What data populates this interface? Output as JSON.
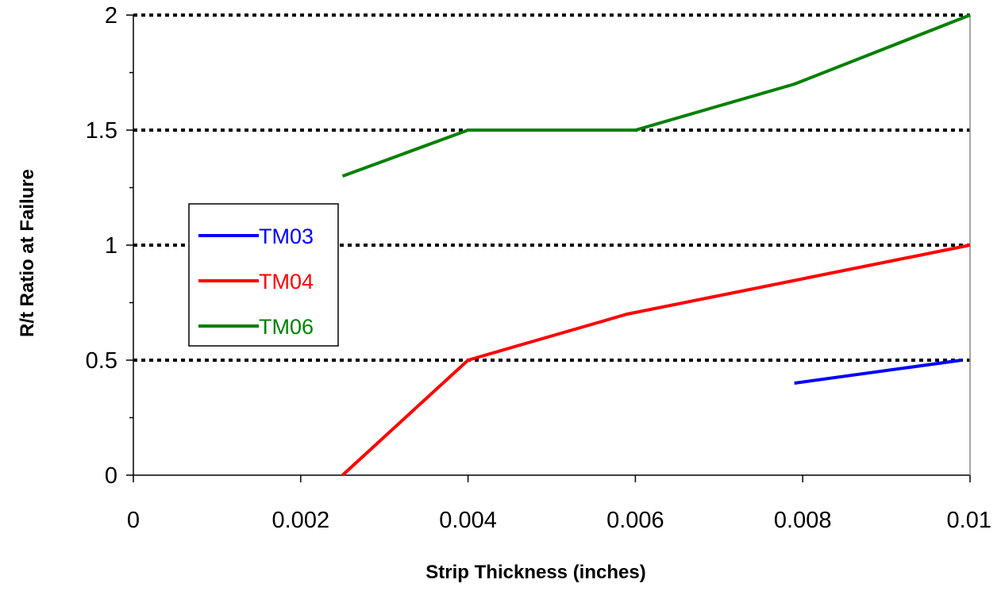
{
  "chart_data": {
    "type": "line",
    "title": "",
    "xlabel": "Strip Thickness (inches)",
    "ylabel": "R/t Ratio at Failure",
    "xlim": [
      0,
      0.01
    ],
    "ylim": [
      0,
      2
    ],
    "x_ticks": [
      "0",
      "0.002",
      "0.004",
      "0.006",
      "0.008",
      "0.01"
    ],
    "y_ticks": [
      "0",
      "0.5",
      "1",
      "1.5",
      "2"
    ],
    "grid": "horizontal dotted at major y ticks",
    "legend_position": "left-center",
    "series": [
      {
        "name": "TM03",
        "color": "#0000ff",
        "x": [
          0.0079,
          0.0099
        ],
        "y": [
          0.4,
          0.5
        ]
      },
      {
        "name": "TM04",
        "color": "#ff0000",
        "x": [
          0.0025,
          0.004,
          0.0059,
          0.01
        ],
        "y": [
          0.0,
          0.5,
          0.7,
          1.0
        ]
      },
      {
        "name": "TM06",
        "color": "#008000",
        "x": [
          0.0025,
          0.004,
          0.006,
          0.0079,
          0.01
        ],
        "y": [
          1.3,
          1.5,
          1.5,
          1.7,
          2.0
        ]
      }
    ]
  }
}
